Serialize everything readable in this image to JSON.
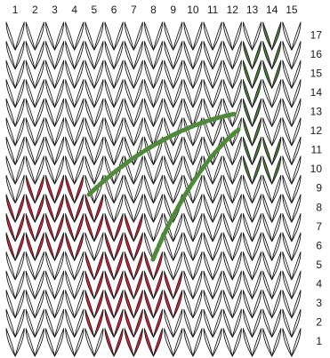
{
  "chart": {
    "columns": [
      "1",
      "2",
      "3",
      "4",
      "5",
      "6",
      "7",
      "8",
      "9",
      "10",
      "11",
      "12",
      "13",
      "14",
      "15"
    ],
    "rows": [
      "1",
      "2",
      "3",
      "4",
      "5",
      "6",
      "7",
      "8",
      "9",
      "10",
      "11",
      "12",
      "13",
      "14",
      "15",
      "16",
      "17"
    ],
    "colors": {
      "background": "#ffffff",
      "cherry": "#e8223c",
      "leaf": "#4f8a3a",
      "outline": "#1a1a1a"
    },
    "cherry_stitches": [
      {
        "row": 1,
        "cols": [
          6,
          7,
          8
        ]
      },
      {
        "row": 2,
        "cols": [
          5,
          6,
          7,
          8
        ]
      },
      {
        "row": 3,
        "cols": [
          5,
          6,
          7,
          8,
          9
        ]
      },
      {
        "row": 4,
        "cols": [
          5,
          6,
          7,
          8,
          9
        ]
      },
      {
        "row": 5,
        "cols": [
          5,
          6,
          7,
          8
        ]
      },
      {
        "row": 6,
        "cols": [
          1,
          2,
          3,
          4,
          6,
          7
        ]
      },
      {
        "row": 7,
        "cols": [
          1,
          2,
          3,
          4,
          5,
          6,
          7
        ]
      },
      {
        "row": 8,
        "cols": [
          1,
          2,
          3,
          4,
          5
        ]
      },
      {
        "row": 9,
        "cols": [
          2,
          3,
          4
        ]
      }
    ],
    "leaf_stitches": [
      {
        "row": 10,
        "cols": [
          13,
          14
        ]
      },
      {
        "row": 11,
        "cols": [
          13,
          14
        ]
      },
      {
        "row": 12,
        "cols": [
          13
        ]
      },
      {
        "row": 13,
        "cols": [
          13
        ]
      },
      {
        "row": 14,
        "cols": [
          13
        ]
      },
      {
        "row": 15,
        "cols": [
          13,
          14
        ]
      },
      {
        "row": 16,
        "cols": [
          13,
          14
        ]
      },
      {
        "row": 17,
        "cols": [
          14
        ]
      }
    ]
  }
}
